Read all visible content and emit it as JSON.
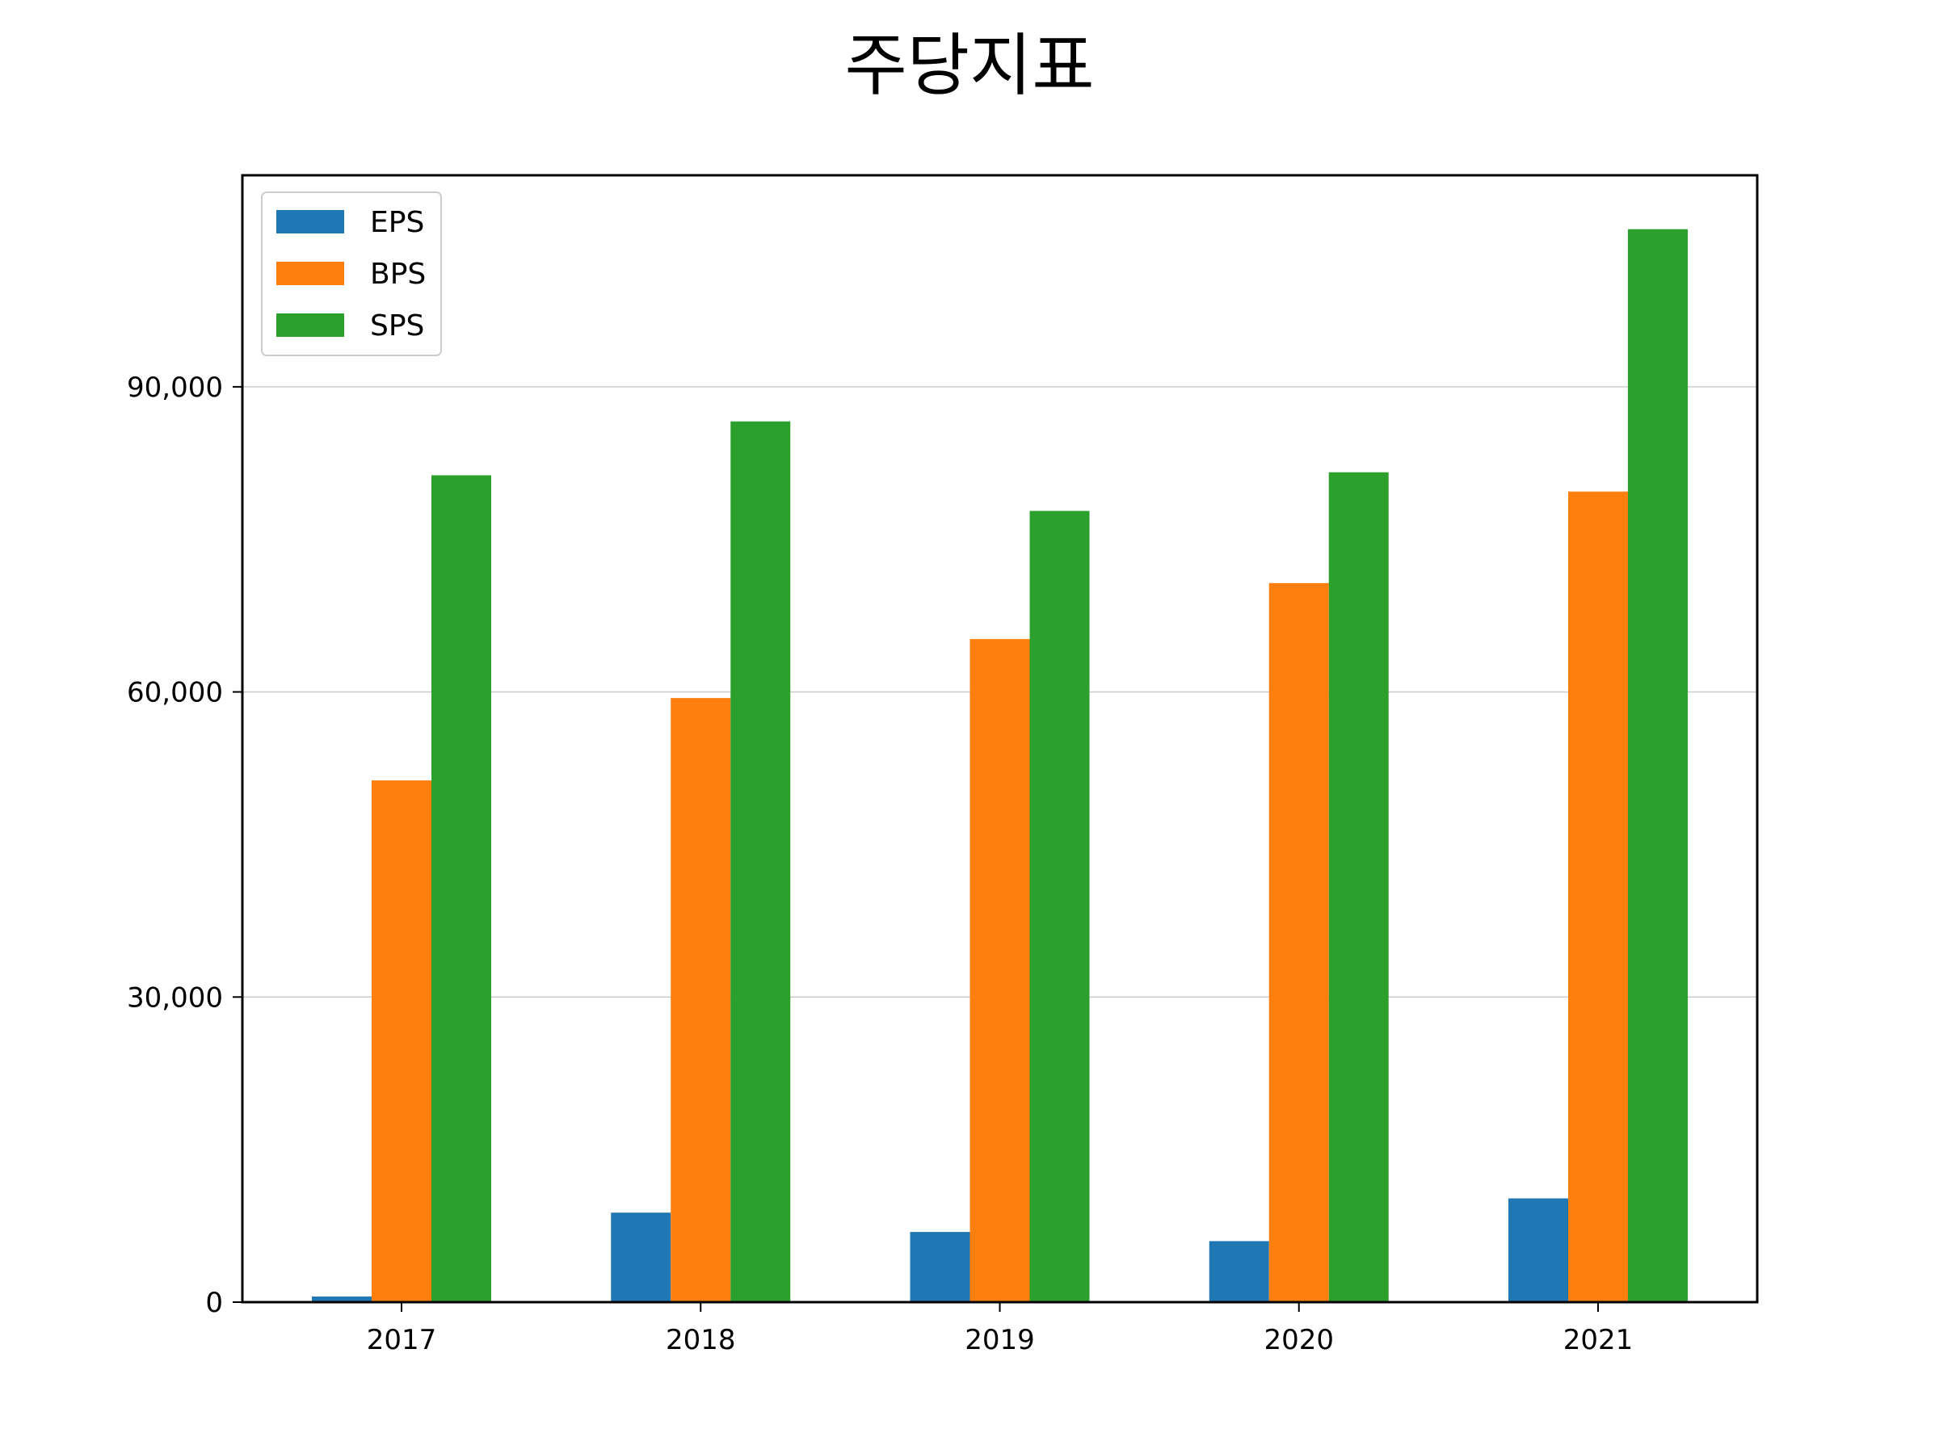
{
  "chart_data": {
    "type": "bar",
    "title": "주당지표",
    "xlabel": "",
    "ylabel": "",
    "categories": [
      "2017",
      "2018",
      "2019",
      "2020",
      "2021"
    ],
    "series": [
      {
        "name": "EPS",
        "color": "#1f77b4",
        "values": [
          550,
          8800,
          6900,
          6000,
          10200
        ]
      },
      {
        "name": "BPS",
        "color": "#ff7f0e",
        "values": [
          51300,
          59400,
          65200,
          70700,
          79700
        ]
      },
      {
        "name": "SPS",
        "color": "#2ca02c",
        "values": [
          81300,
          86600,
          77800,
          81600,
          105500
        ]
      }
    ],
    "ylim": [
      0,
      110800
    ],
    "yticks": [
      0,
      30000,
      60000,
      90000
    ],
    "ytick_labels": [
      "0",
      "30,000",
      "60,000",
      "90,000"
    ],
    "grid": "y",
    "legend": "top-left"
  }
}
